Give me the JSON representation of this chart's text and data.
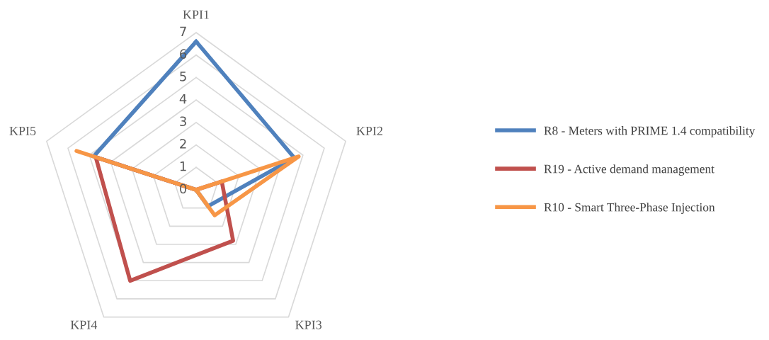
{
  "chart_data": {
    "type": "radar",
    "categories": [
      "KPI1",
      "KPI2",
      "KPI3",
      "KPI4",
      "KPI5"
    ],
    "series": [
      {
        "name": "R8 - Meters with PRIME 1.4 compatibility",
        "color": "#4f81bd",
        "values": [
          6.6,
          4.6,
          0.9,
          0,
          4.8
        ]
      },
      {
        "name": "R19 - Active demand management",
        "color": "#c0504d",
        "values": [
          0,
          1.2,
          2.8,
          5,
          4.7
        ]
      },
      {
        "name": "R10 - Smart Three-Phase Injection",
        "color": "#f79646",
        "values": [
          0,
          4.8,
          1.4,
          0,
          5.6
        ]
      }
    ],
    "ylim": [
      0,
      7
    ],
    "yticks": [
      0,
      1,
      2,
      3,
      4,
      5,
      6,
      7
    ],
    "grid": true,
    "legend": "right",
    "line_style": "solid",
    "marker": "none"
  }
}
